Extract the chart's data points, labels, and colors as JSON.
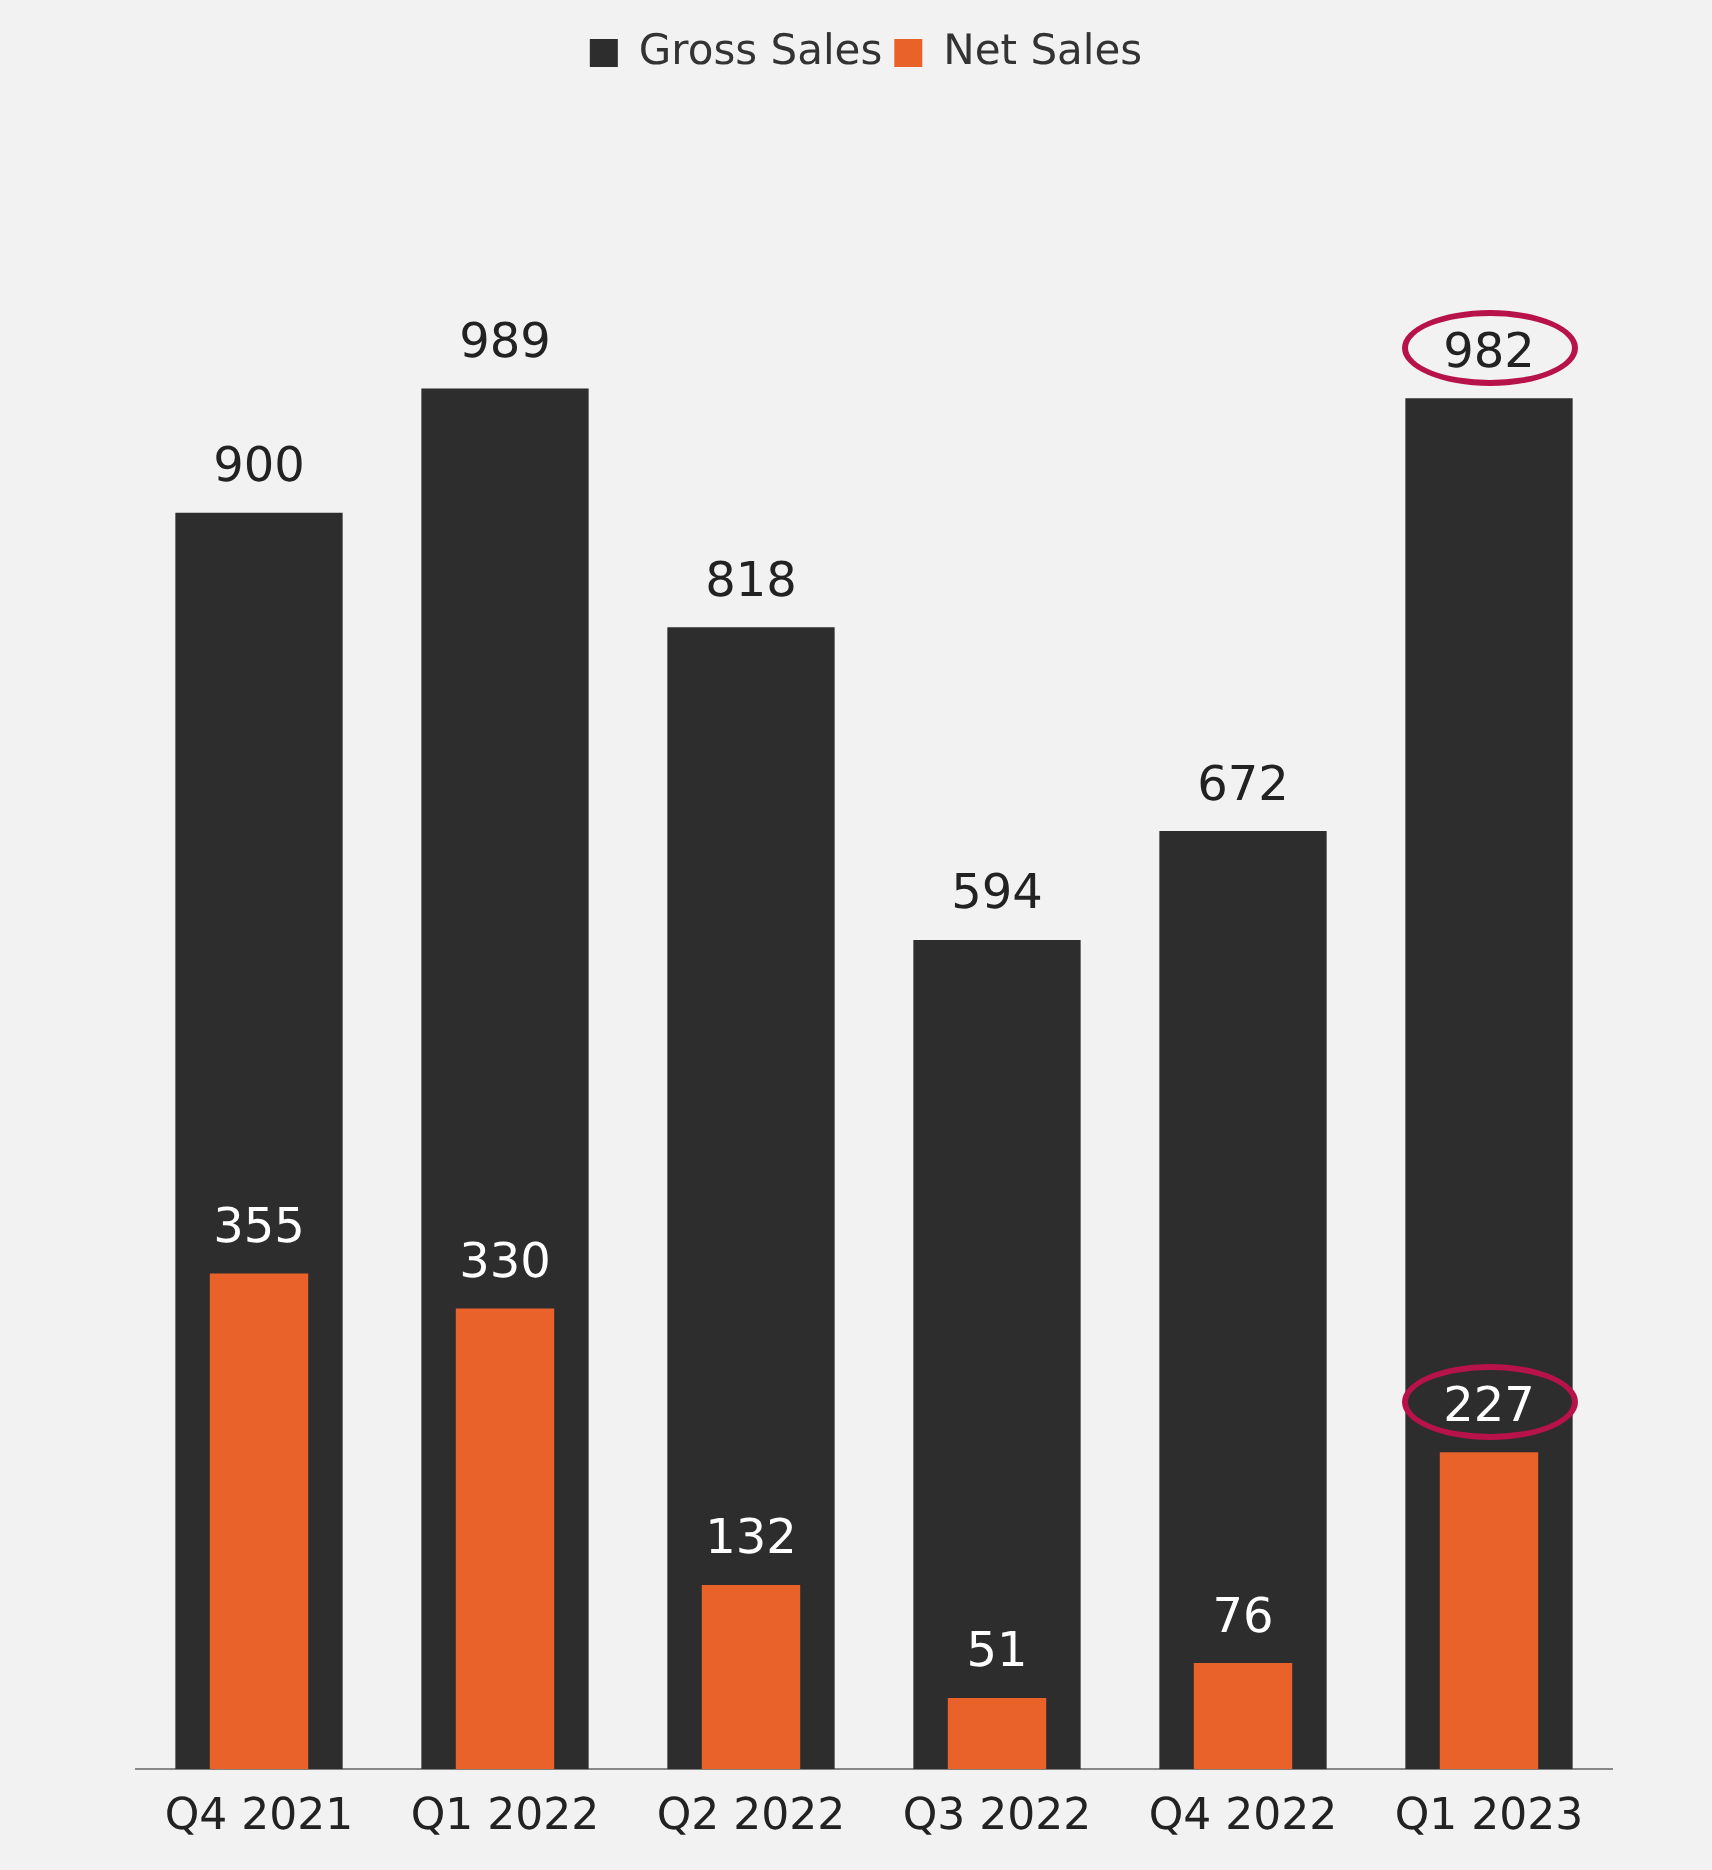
{
  "chart_data": {
    "type": "bar",
    "categories": [
      "Q4 2021",
      "Q1 2022",
      "Q2 2022",
      "Q3 2022",
      "Q4 2022",
      "Q1 2023"
    ],
    "series": [
      {
        "name": "Gross Sales",
        "color": "#2d2d2d",
        "values": [
          900,
          989,
          818,
          594,
          672,
          982
        ]
      },
      {
        "name": "Net Sales",
        "color": "#e8622a",
        "values": [
          355,
          330,
          132,
          51,
          76,
          227
        ]
      }
    ],
    "data_labels": true,
    "relative": false,
    "grid": false,
    "legend": "top"
  }
}
